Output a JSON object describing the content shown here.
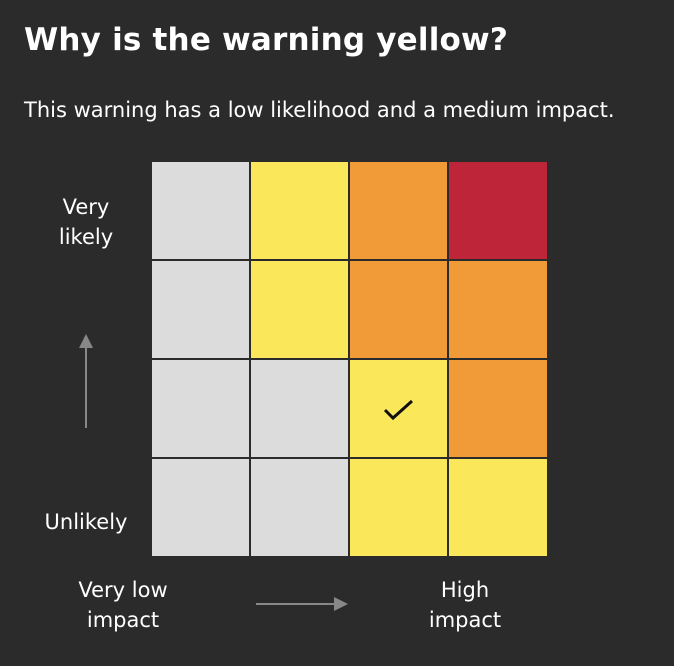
{
  "header": {
    "title": "Why is the warning yellow?",
    "description": "This warning has a low likelihood and a medium impact."
  },
  "matrix": {
    "y_axis": {
      "top": "Very likely",
      "bottom": "Unlikely"
    },
    "x_axis": {
      "left": "Very low impact",
      "right": "High impact"
    }
  }
}
